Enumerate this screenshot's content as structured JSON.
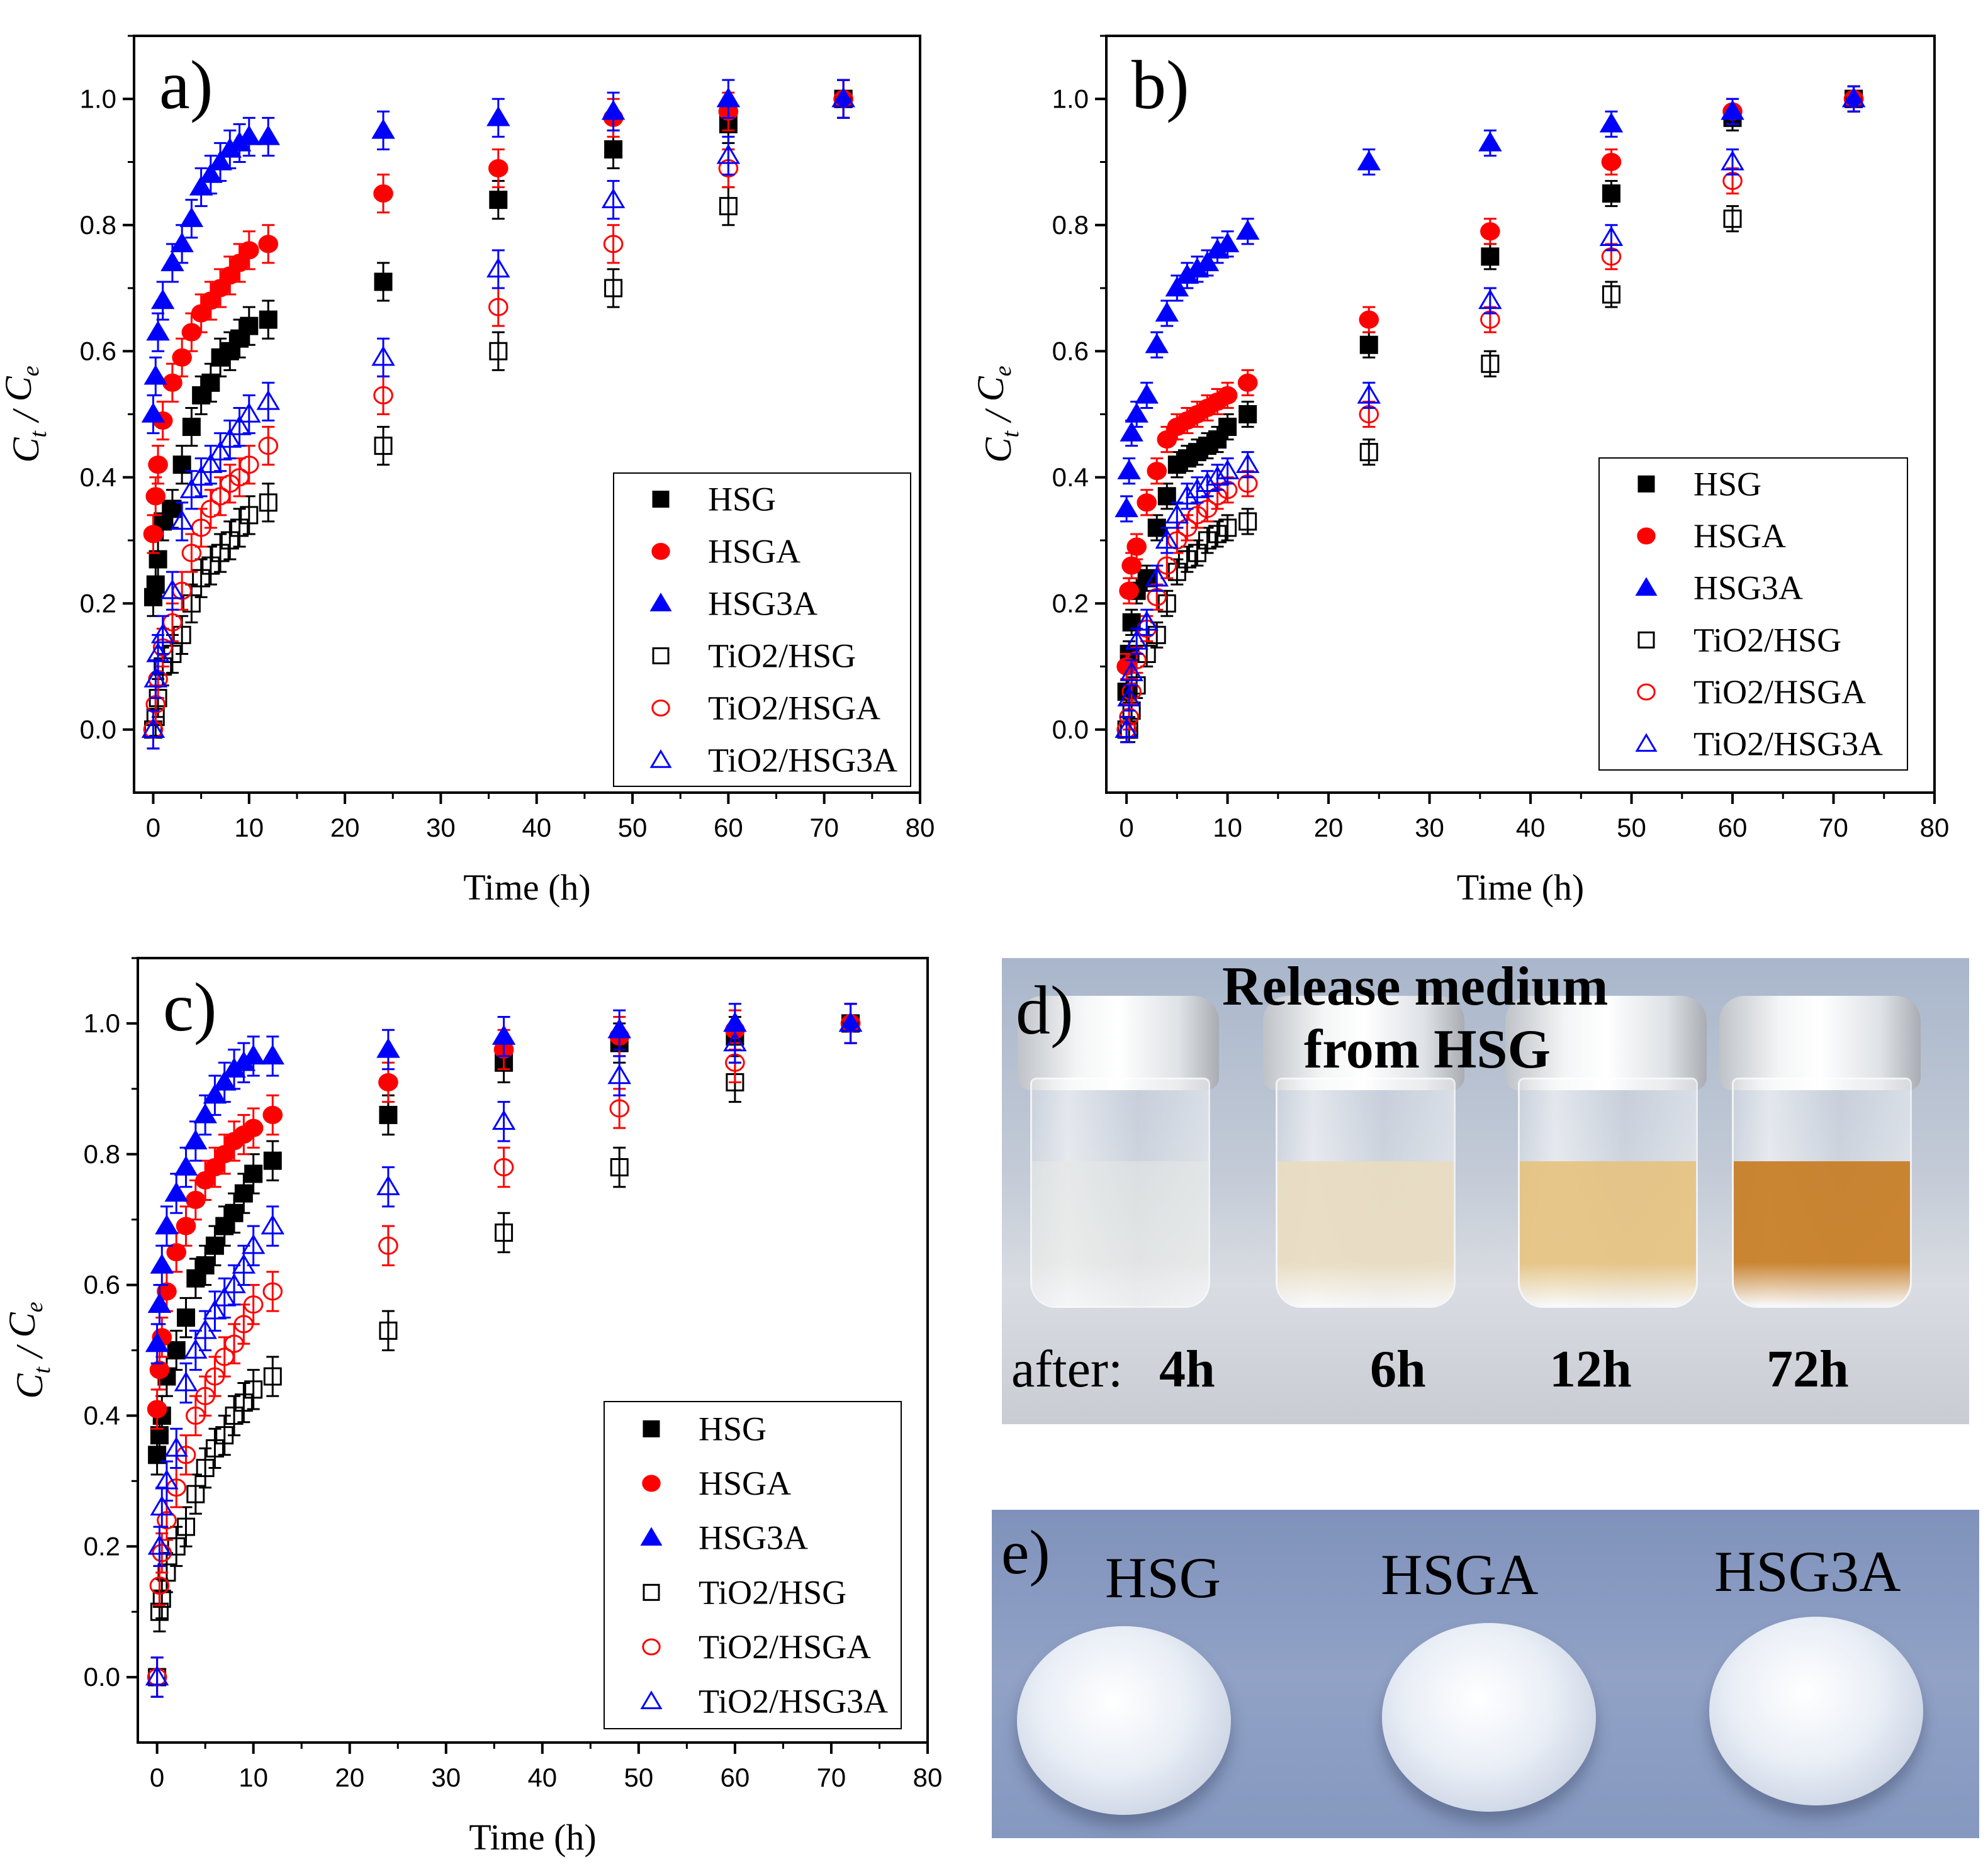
{
  "chart_data": [
    {
      "type": "scatter",
      "panel_label": "a)",
      "xlabel": "Time (h)",
      "ylabel": {
        "main": "C",
        "sub1": "t",
        "sep": " / ",
        "main2": "C",
        "sub2": "e"
      },
      "xlim": [
        -2,
        80
      ],
      "ylim": [
        -0.1,
        1.1
      ],
      "xticks": [
        "0",
        "10",
        "20",
        "30",
        "40",
        "50",
        "60",
        "70",
        "80"
      ],
      "yticks": [
        "0.0",
        "0.2",
        "0.4",
        "0.6",
        "0.8",
        "1.0"
      ],
      "legend_position": "bottom-right",
      "error": 0.03,
      "x": [
        0,
        0.25,
        0.5,
        1,
        2,
        3,
        4,
        5,
        6,
        7,
        8,
        9,
        10,
        12,
        24,
        36,
        48,
        60,
        72
      ],
      "series": [
        {
          "name": "HSG",
          "marker": "square",
          "filled": true,
          "color": "#000000",
          "values": [
            0.21,
            0.23,
            0.27,
            0.33,
            0.35,
            0.42,
            0.48,
            0.53,
            0.55,
            0.59,
            0.6,
            0.62,
            0.64,
            0.65,
            0.71,
            0.84,
            0.92,
            0.96,
            1.0
          ]
        },
        {
          "name": "HSGA",
          "marker": "circle",
          "filled": true,
          "color": "#ff0000",
          "values": [
            0.31,
            0.37,
            0.42,
            0.49,
            0.55,
            0.59,
            0.63,
            0.66,
            0.68,
            0.7,
            0.72,
            0.74,
            0.76,
            0.77,
            0.85,
            0.89,
            0.97,
            0.98,
            1.0
          ]
        },
        {
          "name": "HSG3A",
          "marker": "triangle",
          "filled": true,
          "color": "#0000ff",
          "values": [
            0.5,
            0.56,
            0.63,
            0.68,
            0.74,
            0.77,
            0.81,
            0.86,
            0.88,
            0.9,
            0.92,
            0.93,
            0.94,
            0.94,
            0.95,
            0.97,
            0.98,
            1.0,
            1.0
          ]
        },
        {
          "name": "TiO2/HSG",
          "marker": "square",
          "filled": false,
          "color": "#000000",
          "values": [
            0.0,
            0.02,
            0.05,
            0.1,
            0.12,
            0.15,
            0.2,
            0.24,
            0.26,
            0.28,
            0.3,
            0.32,
            0.34,
            0.36,
            0.45,
            0.6,
            0.7,
            0.83,
            1.0
          ]
        },
        {
          "name": "TiO2/HSGA",
          "marker": "circle",
          "filled": false,
          "color": "#ff0000",
          "values": [
            0.0,
            0.04,
            0.08,
            0.13,
            0.17,
            0.22,
            0.28,
            0.32,
            0.35,
            0.37,
            0.39,
            0.4,
            0.42,
            0.45,
            0.53,
            0.67,
            0.77,
            0.89,
            1.0
          ]
        },
        {
          "name": "TiO2/HSG3A",
          "marker": "triangle",
          "filled": false,
          "color": "#0000ff",
          "values": [
            0.0,
            0.08,
            0.12,
            0.15,
            0.22,
            0.33,
            0.38,
            0.4,
            0.42,
            0.44,
            0.46,
            0.48,
            0.5,
            0.52,
            0.59,
            0.73,
            0.84,
            0.91,
            1.0
          ]
        }
      ]
    },
    {
      "type": "scatter",
      "panel_label": "b)",
      "xlabel": "Time (h)",
      "ylabel": {
        "main": "C",
        "sub1": "t",
        "sep": " / ",
        "main2": "C",
        "sub2": "e"
      },
      "xlim": [
        -2,
        80
      ],
      "ylim": [
        -0.1,
        1.1
      ],
      "xticks": [
        "0",
        "10",
        "20",
        "30",
        "40",
        "50",
        "60",
        "70",
        "80"
      ],
      "yticks": [
        "0.0",
        "0.2",
        "0.4",
        "0.6",
        "0.8",
        "1.0"
      ],
      "legend_position": "right",
      "error": 0.02,
      "x": [
        0,
        0.25,
        0.5,
        1,
        2,
        3,
        4,
        5,
        6,
        7,
        8,
        9,
        10,
        12,
        24,
        36,
        48,
        60,
        72
      ],
      "series": [
        {
          "name": "HSG",
          "marker": "square",
          "filled": true,
          "color": "#000000",
          "values": [
            0.06,
            0.12,
            0.17,
            0.22,
            0.24,
            0.32,
            0.37,
            0.42,
            0.43,
            0.44,
            0.45,
            0.46,
            0.48,
            0.5,
            0.61,
            0.75,
            0.85,
            0.97,
            1.0
          ]
        },
        {
          "name": "HSGA",
          "marker": "circle",
          "filled": true,
          "color": "#ff0000",
          "values": [
            0.1,
            0.22,
            0.26,
            0.29,
            0.36,
            0.41,
            0.46,
            0.48,
            0.49,
            0.5,
            0.51,
            0.52,
            0.53,
            0.55,
            0.65,
            0.79,
            0.9,
            0.98,
            1.0
          ]
        },
        {
          "name": "HSG3A",
          "marker": "triangle",
          "filled": true,
          "color": "#0000ff",
          "values": [
            0.35,
            0.41,
            0.47,
            0.5,
            0.53,
            0.61,
            0.66,
            0.7,
            0.72,
            0.73,
            0.74,
            0.76,
            0.77,
            0.79,
            0.9,
            0.93,
            0.96,
            0.98,
            1.0
          ]
        },
        {
          "name": "TiO2/HSG",
          "marker": "square",
          "filled": false,
          "color": "#000000",
          "values": [
            0.0,
            0.0,
            0.03,
            0.07,
            0.12,
            0.15,
            0.2,
            0.25,
            0.27,
            0.28,
            0.3,
            0.31,
            0.32,
            0.33,
            0.44,
            0.58,
            0.69,
            0.81,
            1.0
          ]
        },
        {
          "name": "TiO2/HSGA",
          "marker": "circle",
          "filled": false,
          "color": "#ff0000",
          "values": [
            0.0,
            0.02,
            0.06,
            0.11,
            0.16,
            0.21,
            0.26,
            0.3,
            0.32,
            0.34,
            0.35,
            0.37,
            0.38,
            0.39,
            0.5,
            0.65,
            0.75,
            0.87,
            1.0
          ]
        },
        {
          "name": "TiO2/HSG3A",
          "marker": "triangle",
          "filled": false,
          "color": "#0000ff",
          "values": [
            0.0,
            0.05,
            0.09,
            0.14,
            0.17,
            0.24,
            0.3,
            0.34,
            0.37,
            0.38,
            0.39,
            0.4,
            0.41,
            0.42,
            0.53,
            0.68,
            0.78,
            0.9,
            1.0
          ]
        }
      ]
    },
    {
      "type": "scatter",
      "panel_label": "c)",
      "xlabel": "Time (h)",
      "ylabel": {
        "main": "C",
        "sub1": "t",
        "sep": " / ",
        "main2": "C",
        "sub2": "e"
      },
      "xlim": [
        -2,
        80
      ],
      "ylim": [
        -0.1,
        1.1
      ],
      "xticks": [
        "0",
        "10",
        "20",
        "30",
        "40",
        "50",
        "60",
        "70",
        "80"
      ],
      "yticks": [
        "0.0",
        "0.2",
        "0.4",
        "0.6",
        "0.8",
        "1.0"
      ],
      "legend_position": "bottom-right",
      "error": 0.03,
      "x": [
        0,
        0.25,
        0.5,
        1,
        2,
        3,
        4,
        5,
        6,
        7,
        8,
        9,
        10,
        12,
        24,
        36,
        48,
        60,
        72
      ],
      "series": [
        {
          "name": "HSG",
          "marker": "square",
          "filled": true,
          "color": "#000000",
          "values": [
            0.34,
            0.37,
            0.4,
            0.46,
            0.5,
            0.55,
            0.61,
            0.63,
            0.66,
            0.69,
            0.71,
            0.74,
            0.77,
            0.79,
            0.86,
            0.94,
            0.97,
            0.98,
            1.0
          ]
        },
        {
          "name": "HSGA",
          "marker": "circle",
          "filled": true,
          "color": "#ff0000",
          "values": [
            0.41,
            0.47,
            0.52,
            0.59,
            0.65,
            0.69,
            0.73,
            0.76,
            0.78,
            0.8,
            0.82,
            0.83,
            0.84,
            0.86,
            0.91,
            0.96,
            0.98,
            0.99,
            1.0
          ]
        },
        {
          "name": "HSG3A",
          "marker": "triangle",
          "filled": true,
          "color": "#0000ff",
          "values": [
            0.51,
            0.57,
            0.63,
            0.69,
            0.74,
            0.78,
            0.82,
            0.86,
            0.89,
            0.91,
            0.93,
            0.94,
            0.95,
            0.95,
            0.96,
            0.98,
            0.99,
            1.0,
            1.0
          ]
        },
        {
          "name": "TiO2/HSG",
          "marker": "square",
          "filled": false,
          "color": "#000000",
          "values": [
            0.0,
            0.1,
            0.12,
            0.16,
            0.2,
            0.23,
            0.28,
            0.32,
            0.35,
            0.37,
            0.4,
            0.42,
            0.44,
            0.46,
            0.53,
            0.68,
            0.78,
            0.91,
            1.0
          ]
        },
        {
          "name": "TiO2/HSGA",
          "marker": "circle",
          "filled": false,
          "color": "#ff0000",
          "values": [
            0.0,
            0.14,
            0.19,
            0.24,
            0.29,
            0.34,
            0.4,
            0.43,
            0.46,
            0.49,
            0.51,
            0.54,
            0.57,
            0.59,
            0.66,
            0.78,
            0.87,
            0.94,
            1.0
          ]
        },
        {
          "name": "TiO2/HSG3A",
          "marker": "triangle",
          "filled": false,
          "color": "#0000ff",
          "values": [
            0.0,
            0.2,
            0.26,
            0.3,
            0.35,
            0.45,
            0.5,
            0.53,
            0.56,
            0.58,
            0.6,
            0.63,
            0.66,
            0.69,
            0.75,
            0.85,
            0.92,
            0.97,
            1.0
          ]
        }
      ]
    }
  ],
  "photo_d": {
    "panel_label": "d)",
    "title_line1": "Release medium",
    "title_line2": "from HSG",
    "after_label": "after:",
    "times": [
      "4h",
      "6h",
      "12h",
      "72h"
    ],
    "liquid_colors": [
      "#e6e8e4",
      "#e9dcc0",
      "#e6c27e",
      "#c77a1e"
    ]
  },
  "photo_e": {
    "panel_label": "e)",
    "samples": [
      "HSG",
      "HSGA",
      "HSG3A"
    ]
  }
}
